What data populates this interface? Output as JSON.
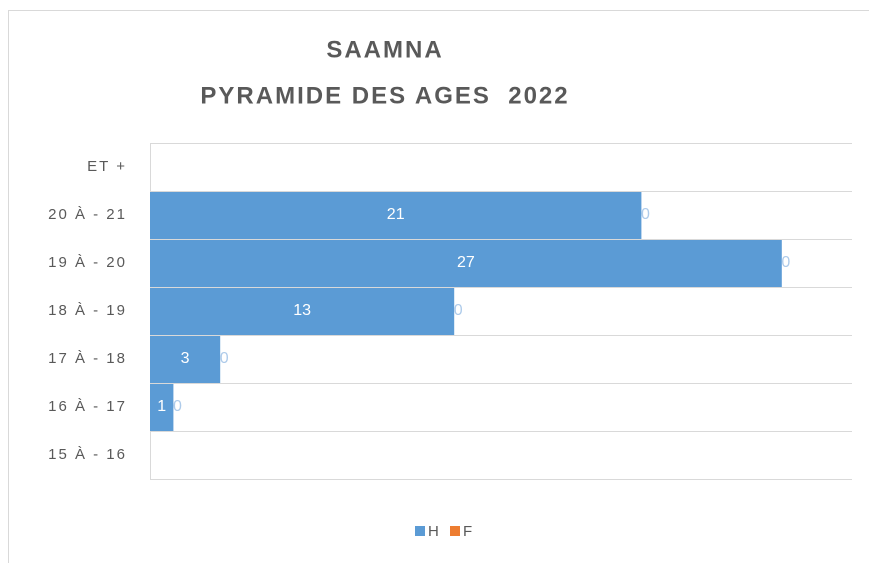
{
  "chart_data": {
    "type": "stacked-barh",
    "title": "SAAMNA",
    "subtitle": "PYRAMIDE DES AGES  2022",
    "categories": [
      "ET +",
      "20 À - 21",
      "19 À - 20",
      "18 À - 19",
      "17 À - 18",
      "16 À - 17",
      "15 À - 16"
    ],
    "series": [
      {
        "name": "H",
        "color": "#5b9bd5",
        "values": [
          null,
          21,
          27,
          13,
          3,
          1,
          null
        ]
      },
      {
        "name": "F",
        "color": "#ed7d31",
        "values": [
          null,
          0,
          0,
          0,
          0,
          0,
          null
        ]
      }
    ],
    "xlim": [
      0,
      30
    ],
    "grid": true,
    "legend": "bottom"
  }
}
